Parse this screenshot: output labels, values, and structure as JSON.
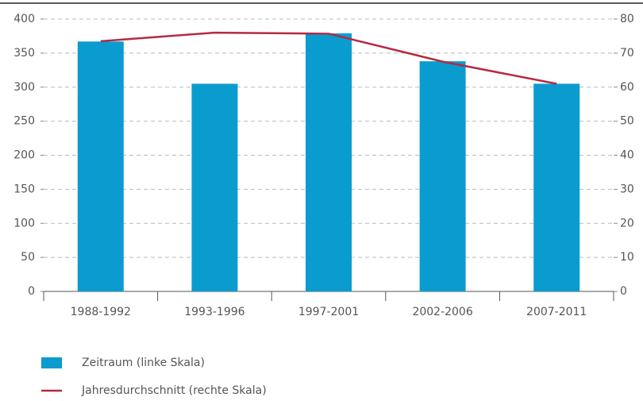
{
  "chart_data": {
    "type": "bar",
    "categories": [
      "1988-1992",
      "1993-1996",
      "1997-2001",
      "2002-2006",
      "2007-2011"
    ],
    "series": [
      {
        "name": "Zeitraum (linke Skala)",
        "type": "bar",
        "color": "#0a9ccf",
        "values": [
          367,
          305,
          379,
          338,
          305
        ]
      },
      {
        "name": "Jahresdurchschnitt (rechte Skala)",
        "type": "line",
        "axis": "y2",
        "color": "#b52a42",
        "values": [
          73.5,
          76,
          75.7,
          67.5,
          61
        ]
      }
    ],
    "ylim": [
      0,
      400
    ],
    "yticks": [
      0,
      50,
      100,
      150,
      200,
      250,
      300,
      350,
      400
    ],
    "y2lim": [
      0,
      80
    ],
    "y2ticks": [
      0,
      10,
      20,
      30,
      40,
      50,
      60,
      70,
      80
    ],
    "grid": true
  }
}
